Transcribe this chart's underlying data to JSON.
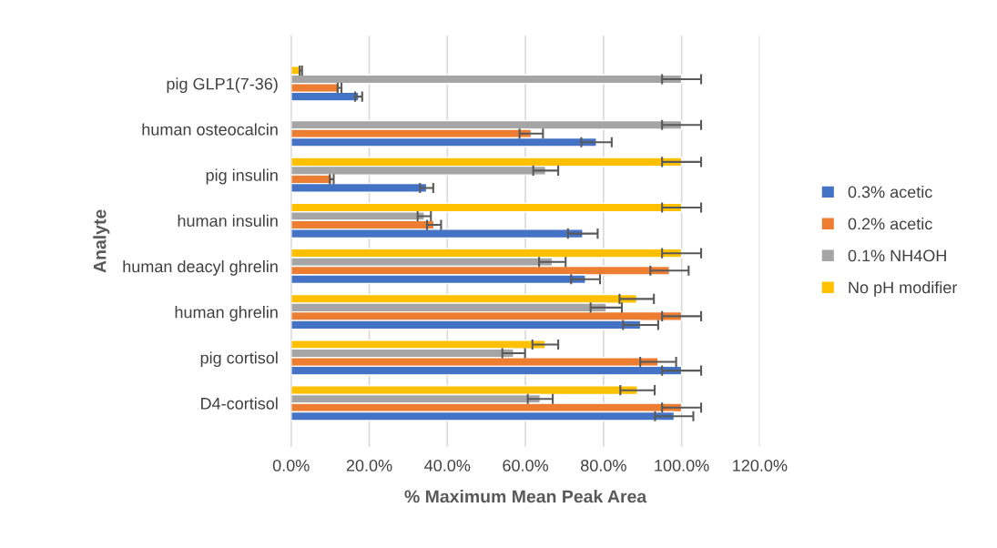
{
  "chart_data": {
    "type": "bar",
    "orientation": "horizontal",
    "xlabel": "% Maximum Mean Peak Area",
    "ylabel": "Analyte",
    "categories": [
      "pig GLP1(7-36)",
      "human osteocalcin",
      "pig insulin",
      "human insulin",
      "human deacyl ghrelin",
      "human ghrelin",
      "pig cortisol",
      "D4-cortisol"
    ],
    "series": [
      {
        "name": "No pH modifier",
        "color": "#ffc000",
        "values": [
          2.5,
          null,
          100,
          100,
          100,
          88.5,
          65.1,
          88.7
        ],
        "errors": [
          0.3,
          null,
          5,
          5,
          5,
          4.4,
          3.3,
          4.4
        ]
      },
      {
        "name": "0.1% NH4OH",
        "color": "#a5a5a5",
        "values": [
          100,
          100,
          65.2,
          34.1,
          66.9,
          80.7,
          57.0,
          63.8
        ],
        "errors": [
          5,
          5,
          3.2,
          1.7,
          3.4,
          4.0,
          2.9,
          3.2
        ]
      },
      {
        "name": "0.2% acetic",
        "color": "#ed7d31",
        "values": [
          12.4,
          61.5,
          10.4,
          36.6,
          96.9,
          100,
          94.0,
          100
        ],
        "errors": [
          0.5,
          3.0,
          0.5,
          1.8,
          4.9,
          5,
          4.6,
          5
        ]
      },
      {
        "name": "0.3% acetic",
        "color": "#4472c4",
        "values": [
          17.3,
          78.2,
          34.7,
          74.7,
          75.4,
          89.5,
          100,
          98.1
        ],
        "errors": [
          0.9,
          3.9,
          1.7,
          3.8,
          3.7,
          4.5,
          5,
          4.9
        ]
      }
    ],
    "xlim": [
      0,
      120
    ],
    "xticks": [
      {
        "value": 0,
        "label": "0.0%"
      },
      {
        "value": 20,
        "label": "20.0%"
      },
      {
        "value": 40,
        "label": "40.0%"
      },
      {
        "value": 60,
        "label": "60.0%"
      },
      {
        "value": 80,
        "label": "80.0%"
      },
      {
        "value": 100,
        "label": "100.0%"
      },
      {
        "value": 120,
        "label": "120.0%"
      }
    ],
    "grid": "x",
    "legend": "right"
  }
}
